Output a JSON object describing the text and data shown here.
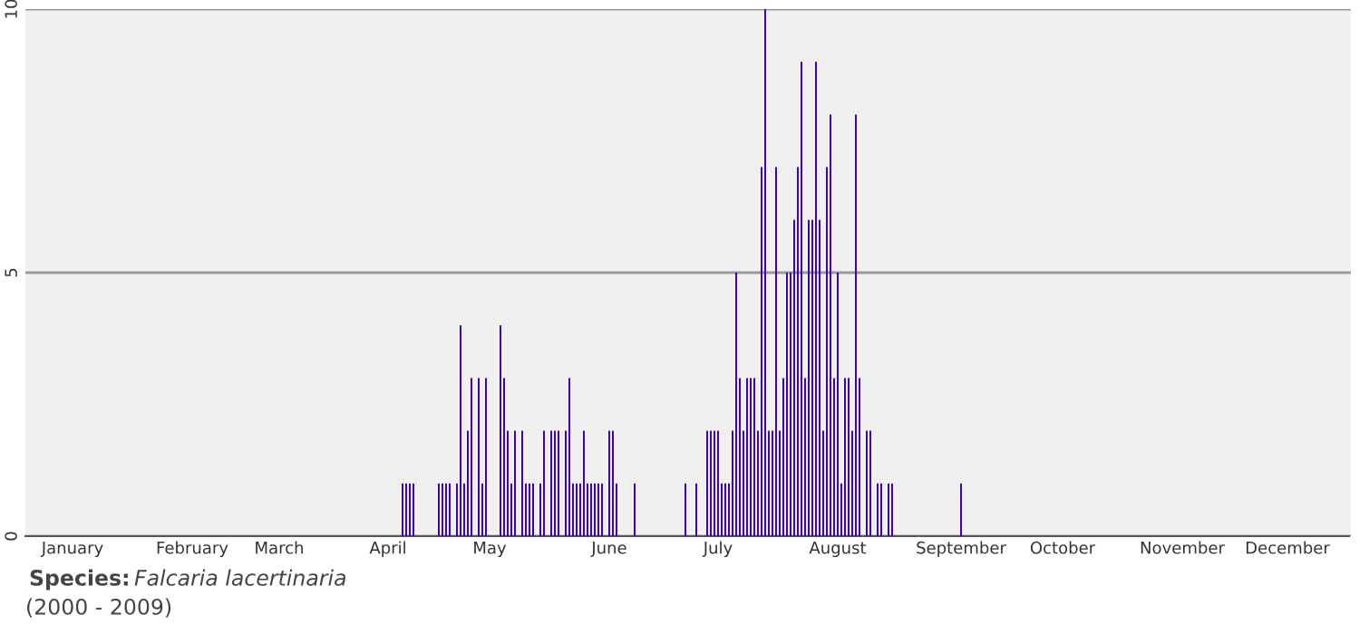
{
  "chart_data": {
    "type": "bar",
    "categories": [
      null,
      null,
      null,
      null,
      null,
      null,
      null,
      null,
      null,
      null,
      null,
      null,
      "January",
      null,
      null,
      null,
      null,
      null,
      null,
      null,
      null,
      null,
      null,
      null,
      null,
      null,
      null,
      null,
      null,
      null,
      null,
      null,
      null,
      null,
      null,
      null,
      null,
      null,
      null,
      null,
      null,
      null,
      null,
      null,
      null,
      "February",
      null,
      null,
      null,
      null,
      null,
      null,
      null,
      null,
      null,
      null,
      null,
      null,
      null,
      null,
      null,
      null,
      null,
      null,
      null,
      null,
      null,
      null,
      null,
      "March",
      null,
      null,
      null,
      null,
      null,
      null,
      null,
      null,
      null,
      null,
      null,
      null,
      null,
      null,
      null,
      null,
      null,
      null,
      null,
      null,
      null,
      null,
      null,
      null,
      null,
      null,
      null,
      null,
      null,
      "April",
      null,
      null,
      null,
      null,
      null,
      null,
      null,
      null,
      null,
      null,
      null,
      null,
      null,
      null,
      null,
      null,
      null,
      null,
      null,
      null,
      null,
      null,
      null,
      null,
      null,
      null,
      null,
      "May",
      null,
      null,
      null,
      null,
      null,
      null,
      null,
      null,
      null,
      null,
      null,
      null,
      null,
      null,
      null,
      null,
      null,
      null,
      null,
      null,
      null,
      null,
      null,
      null,
      null,
      null,
      null,
      null,
      null,
      null,
      null,
      null,
      "June",
      null,
      null,
      null,
      null,
      null,
      null,
      null,
      null,
      null,
      null,
      null,
      null,
      null,
      null,
      null,
      null,
      null,
      null,
      null,
      null,
      null,
      null,
      null,
      null,
      null,
      null,
      null,
      null,
      null,
      "July",
      null,
      null,
      null,
      null,
      null,
      null,
      null,
      null,
      null,
      null,
      null,
      null,
      null,
      null,
      null,
      null,
      null,
      null,
      null,
      null,
      null,
      null,
      null,
      null,
      null,
      null,
      null,
      null,
      null,
      null,
      null,
      null,
      "August",
      null,
      null,
      null,
      null,
      null,
      null,
      null,
      null,
      null,
      null,
      null,
      null,
      null,
      null,
      null,
      null,
      null,
      null,
      null,
      null,
      null,
      null,
      null,
      null,
      null,
      null,
      null,
      null,
      null,
      null,
      null,
      null,
      null,
      "September",
      null,
      null,
      null,
      null,
      null,
      null,
      null,
      null,
      null,
      null,
      null,
      null,
      null,
      null,
      null,
      null,
      null,
      null,
      null,
      null,
      null,
      null,
      null,
      null,
      null,
      null,
      null,
      "October",
      null,
      null,
      null,
      null,
      null,
      null,
      null,
      null,
      null,
      null,
      null,
      null,
      null,
      null,
      null,
      null,
      null,
      null,
      null,
      null,
      null,
      null,
      null,
      null,
      null,
      null,
      null,
      null,
      null,
      null,
      null,
      null,
      "November",
      null,
      null,
      null,
      null,
      null,
      null,
      null,
      null,
      null,
      null,
      null,
      null,
      null,
      null,
      null,
      null,
      null,
      null,
      null,
      null,
      null,
      null,
      null,
      null,
      null,
      null,
      null,
      null,
      "December",
      null,
      null,
      null,
      null,
      null,
      null,
      null,
      null,
      null,
      null,
      null,
      null,
      null,
      null,
      null,
      null,
      null
    ],
    "values": [
      null,
      null,
      null,
      null,
      null,
      null,
      null,
      null,
      null,
      null,
      null,
      null,
      null,
      null,
      null,
      null,
      null,
      null,
      null,
      null,
      null,
      null,
      null,
      null,
      null,
      null,
      null,
      null,
      null,
      null,
      null,
      null,
      null,
      null,
      null,
      null,
      null,
      null,
      null,
      null,
      null,
      null,
      null,
      null,
      null,
      null,
      null,
      null,
      null,
      null,
      null,
      null,
      null,
      null,
      null,
      null,
      null,
      null,
      null,
      null,
      null,
      null,
      null,
      null,
      null,
      null,
      null,
      null,
      null,
      null,
      null,
      null,
      null,
      null,
      null,
      null,
      null,
      null,
      null,
      null,
      null,
      null,
      null,
      null,
      null,
      null,
      null,
      null,
      null,
      null,
      null,
      null,
      null,
      null,
      null,
      null,
      null,
      null,
      null,
      null,
      null,
      null,
      null,
      1,
      1,
      1,
      1,
      null,
      null,
      null,
      null,
      null,
      null,
      1,
      1,
      1,
      1,
      null,
      1,
      4,
      1,
      2,
      3,
      null,
      3,
      1,
      3,
      null,
      null,
      null,
      4,
      3,
      2,
      1,
      2,
      null,
      2,
      1,
      1,
      1,
      null,
      1,
      2,
      null,
      2,
      2,
      2,
      null,
      2,
      3,
      1,
      1,
      1,
      2,
      1,
      1,
      1,
      1,
      1,
      null,
      2,
      2,
      1,
      null,
      null,
      null,
      null,
      1,
      null,
      null,
      null,
      null,
      null,
      null,
      null,
      null,
      null,
      null,
      null,
      null,
      null,
      1,
      null,
      null,
      1,
      null,
      null,
      2,
      2,
      2,
      2,
      1,
      1,
      1,
      2,
      5,
      3,
      2,
      3,
      3,
      3,
      2,
      7,
      10,
      2,
      2,
      7,
      2,
      3,
      5,
      5,
      6,
      7,
      9,
      3,
      6,
      6,
      9,
      6,
      2,
      7,
      8,
      3,
      5,
      1,
      3,
      3,
      2,
      8,
      3,
      null,
      2,
      2,
      null,
      1,
      1,
      null,
      1,
      1,
      null,
      null,
      null,
      null,
      null,
      null,
      null,
      null,
      null,
      null,
      null,
      null,
      null,
      null,
      null,
      null,
      null,
      null,
      1,
      null,
      null,
      null,
      null,
      null,
      null,
      null,
      null,
      null,
      null,
      null,
      null,
      null,
      null,
      null,
      null,
      null,
      null,
      null,
      null,
      null,
      null,
      null,
      null,
      null,
      null,
      null,
      null,
      null,
      null,
      null,
      null,
      null,
      null,
      null,
      null,
      null,
      null,
      null,
      null,
      null,
      null,
      null,
      null,
      null,
      null,
      null,
      null,
      null,
      null,
      null,
      null,
      null,
      null,
      null,
      null,
      null,
      null,
      null,
      null,
      null,
      null,
      null,
      null,
      null,
      null,
      null,
      null,
      null,
      null,
      null,
      null,
      null,
      null,
      null,
      null,
      null,
      null,
      null,
      null,
      null,
      null,
      null,
      null,
      null,
      null,
      null,
      null,
      null,
      null,
      null,
      null,
      null,
      null,
      null,
      null,
      null,
      null,
      null,
      null,
      null,
      null,
      null,
      null,
      null,
      null,
      null
    ],
    "color": "#4000c0",
    "ylim": [
      0,
      10
    ],
    "yticks": [
      0,
      5,
      10
    ],
    "grid": "y",
    "annotations": [
      "Species:",
      "Falcaria lacertinaria",
      "(2000 - 2009)"
    ]
  }
}
